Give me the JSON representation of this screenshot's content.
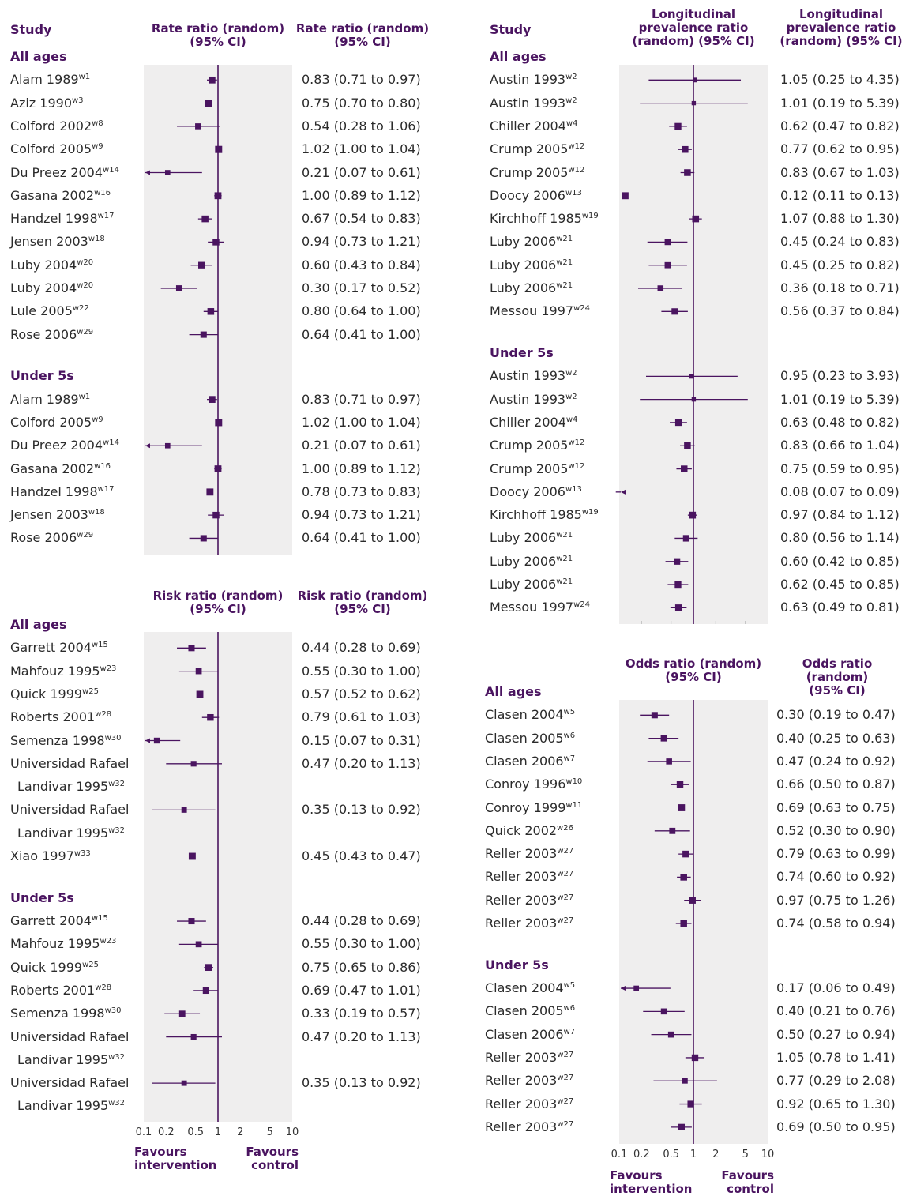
{
  "colors": {
    "accent": "#4a1460",
    "mark": "#4a1460",
    "panel_bg": "#efeeee"
  },
  "chart_data": [
    {
      "type": "forest",
      "id": "p1",
      "study_header": "Study",
      "col_header_plot": "Rate ratio (random)\n(95% CI)",
      "col_header_text": "Rate ratio (random)\n(95% CI)",
      "xscale": "log",
      "xlim": [
        0.1,
        10
      ],
      "xticks": [
        "0.1",
        "0.2",
        "0.5",
        "1",
        "2",
        "5",
        "10"
      ],
      "xlabel_left": "",
      "xlabel_right": "",
      "groups": [
        {
          "label": "All ages",
          "rows": [
            {
              "study": "Alam 1989",
              "ref": "w1",
              "est": 0.83,
              "lo": 0.71,
              "hi": 0.97,
              "text": "0.83 (0.71 to 0.97)"
            },
            {
              "study": "Aziz 1990",
              "ref": "w3",
              "est": 0.75,
              "lo": 0.7,
              "hi": 0.8,
              "text": "0.75 (0.70 to 0.80)"
            },
            {
              "study": "Colford 2002",
              "ref": "w8",
              "est": 0.54,
              "lo": 0.28,
              "hi": 1.06,
              "text": "0.54 (0.28 to 1.06)"
            },
            {
              "study": "Colford 2005",
              "ref": "w9",
              "est": 1.02,
              "lo": 1.0,
              "hi": 1.04,
              "text": "1.02 (1.00 to 1.04)"
            },
            {
              "study": "Du Preez 2004",
              "ref": "w14",
              "est": 0.21,
              "lo": 0.07,
              "hi": 0.61,
              "text": "0.21 (0.07 to 0.61)"
            },
            {
              "study": "Gasana 2002",
              "ref": "w16",
              "est": 1.0,
              "lo": 0.89,
              "hi": 1.12,
              "text": "1.00 (0.89 to 1.12)"
            },
            {
              "study": "Handzel 1998",
              "ref": "w17",
              "est": 0.67,
              "lo": 0.54,
              "hi": 0.83,
              "text": "0.67 (0.54 to 0.83)"
            },
            {
              "study": "Jensen 2003",
              "ref": "w18",
              "est": 0.94,
              "lo": 0.73,
              "hi": 1.21,
              "text": "0.94 (0.73 to 1.21)"
            },
            {
              "study": "Luby 2004",
              "ref": "w20",
              "est": 0.6,
              "lo": 0.43,
              "hi": 0.84,
              "text": "0.60 (0.43 to 0.84)"
            },
            {
              "study": "Luby 2004",
              "ref": "w20",
              "est": 0.3,
              "lo": 0.17,
              "hi": 0.52,
              "text": "0.30 (0.17 to 0.52)"
            },
            {
              "study": "Lule 2005",
              "ref": "w22",
              "est": 0.8,
              "lo": 0.64,
              "hi": 1.0,
              "text": "0.80 (0.64 to 1.00)"
            },
            {
              "study": "Rose 2006",
              "ref": "w29",
              "est": 0.64,
              "lo": 0.41,
              "hi": 1.0,
              "text": "0.64 (0.41 to 1.00)"
            }
          ]
        },
        {
          "label": "Under 5s",
          "rows": [
            {
              "study": "Alam 1989",
              "ref": "w1",
              "est": 0.83,
              "lo": 0.71,
              "hi": 0.97,
              "text": "0.83 (0.71 to 0.97)"
            },
            {
              "study": "Colford 2005",
              "ref": "w9",
              "est": 1.02,
              "lo": 1.0,
              "hi": 1.04,
              "text": "1.02 (1.00 to 1.04)"
            },
            {
              "study": "Du Preez 2004",
              "ref": "w14",
              "est": 0.21,
              "lo": 0.07,
              "hi": 0.61,
              "text": "0.21 (0.07 to 0.61)"
            },
            {
              "study": "Gasana 2002",
              "ref": "w16",
              "est": 1.0,
              "lo": 0.89,
              "hi": 1.12,
              "text": "1.00 (0.89 to 1.12)"
            },
            {
              "study": "Handzel 1998",
              "ref": "w17",
              "est": 0.78,
              "lo": 0.73,
              "hi": 0.83,
              "text": "0.78 (0.73 to 0.83)"
            },
            {
              "study": "Jensen 2003",
              "ref": "w18",
              "est": 0.94,
              "lo": 0.73,
              "hi": 1.21,
              "text": "0.94 (0.73 to 1.21)"
            },
            {
              "study": "Rose 2006",
              "ref": "w29",
              "est": 0.64,
              "lo": 0.41,
              "hi": 1.0,
              "text": "0.64 (0.41 to 1.00)"
            }
          ]
        }
      ]
    },
    {
      "type": "forest",
      "id": "p2",
      "study_header": "",
      "col_header_plot": "Risk ratio (random)\n(95% CI)",
      "col_header_text": "Risk ratio (random)\n(95% CI)",
      "xscale": "log",
      "xlim": [
        0.1,
        10
      ],
      "xticks": [
        "0.1",
        "0.2",
        "0.5",
        "1",
        "2",
        "5",
        "10"
      ],
      "xlabel_left": "Favours\nintervention",
      "xlabel_right": "Favours\ncontrol",
      "groups": [
        {
          "label": "All ages",
          "rows": [
            {
              "study": "Garrett 2004",
              "ref": "w15",
              "est": 0.44,
              "lo": 0.28,
              "hi": 0.69,
              "text": "0.44 (0.28 to 0.69)"
            },
            {
              "study": "Mahfouz 1995",
              "ref": "w23",
              "est": 0.55,
              "lo": 0.3,
              "hi": 1.0,
              "text": "0.55 (0.30 to 1.00)"
            },
            {
              "study": "Quick 1999",
              "ref": "w25",
              "est": 0.57,
              "lo": 0.52,
              "hi": 0.62,
              "text": "0.57 (0.52 to 0.62)"
            },
            {
              "study": "Roberts 2001",
              "ref": "w28",
              "est": 0.79,
              "lo": 0.61,
              "hi": 1.03,
              "text": "0.79 (0.61 to 1.03)"
            },
            {
              "study": "Semenza 1998",
              "ref": "w30",
              "est": 0.15,
              "lo": 0.07,
              "hi": 0.31,
              "text": "0.15 (0.07 to 0.31)"
            },
            {
              "study": "Universidad Rafael",
              "study2": "Landivar 1995",
              "ref": "w32",
              "est": 0.47,
              "lo": 0.2,
              "hi": 1.13,
              "text": "0.47 (0.20 to 1.13)"
            },
            {
              "study": "Universidad Rafael",
              "study2": "Landivar 1995",
              "ref": "w32",
              "est": 0.35,
              "lo": 0.13,
              "hi": 0.92,
              "text": "0.35 (0.13 to 0.92)"
            },
            {
              "study": "Xiao 1997",
              "ref": "w33",
              "est": 0.45,
              "lo": 0.43,
              "hi": 0.47,
              "text": "0.45 (0.43 to 0.47)"
            }
          ]
        },
        {
          "label": "Under 5s",
          "rows": [
            {
              "study": "Garrett 2004",
              "ref": "w15",
              "est": 0.44,
              "lo": 0.28,
              "hi": 0.69,
              "text": "0.44 (0.28 to 0.69)"
            },
            {
              "study": "Mahfouz 1995",
              "ref": "w23",
              "est": 0.55,
              "lo": 0.3,
              "hi": 1.0,
              "text": "0.55 (0.30 to 1.00)"
            },
            {
              "study": "Quick 1999",
              "ref": "w25",
              "est": 0.75,
              "lo": 0.65,
              "hi": 0.86,
              "text": "0.75 (0.65 to 0.86)"
            },
            {
              "study": "Roberts 2001",
              "ref": "w28",
              "est": 0.69,
              "lo": 0.47,
              "hi": 1.01,
              "text": "0.69 (0.47 to 1.01)"
            },
            {
              "study": "Semenza 1998",
              "ref": "w30",
              "est": 0.33,
              "lo": 0.19,
              "hi": 0.57,
              "text": "0.33 (0.19 to 0.57)"
            },
            {
              "study": "Universidad Rafael",
              "study2": "Landivar 1995",
              "ref": "w32",
              "est": 0.47,
              "lo": 0.2,
              "hi": 1.13,
              "text": "0.47 (0.20 to 1.13)"
            },
            {
              "study": "Universidad Rafael",
              "study2": "Landivar 1995",
              "ref": "w32",
              "est": 0.35,
              "lo": 0.13,
              "hi": 0.92,
              "text": "0.35 (0.13 to 0.92)"
            }
          ]
        }
      ]
    },
    {
      "type": "forest",
      "id": "p3",
      "study_header": "Study",
      "col_header_plot": "Longitudinal\nprevalence ratio\n(random) (95% CI)",
      "col_header_text": "Longitudinal\nprevalence ratio\n(random) (95% CI)",
      "xscale": "log",
      "xlim": [
        0.1,
        10
      ],
      "xticks": [],
      "xlabel_left": "",
      "xlabel_right": "",
      "groups": [
        {
          "label": "All ages",
          "rows": [
            {
              "study": "Austin 1993",
              "ref": "w2",
              "est": 1.05,
              "lo": 0.25,
              "hi": 4.35,
              "text": "1.05 (0.25 to 4.35)"
            },
            {
              "study": "Austin 1993",
              "ref": "w2",
              "est": 1.01,
              "lo": 0.19,
              "hi": 5.39,
              "text": "1.01 (0.19 to 5.39)"
            },
            {
              "study": "Chiller 2004",
              "ref": "w4",
              "est": 0.62,
              "lo": 0.47,
              "hi": 0.82,
              "text": "0.62 (0.47 to 0.82)"
            },
            {
              "study": "Crump 2005",
              "ref": "w12",
              "est": 0.77,
              "lo": 0.62,
              "hi": 0.95,
              "text": "0.77 (0.62 to 0.95)"
            },
            {
              "study": "Crump 2005",
              "ref": "w12",
              "est": 0.83,
              "lo": 0.67,
              "hi": 1.03,
              "text": "0.83 (0.67 to 1.03)"
            },
            {
              "study": "Doocy 2006",
              "ref": "w13",
              "est": 0.12,
              "lo": 0.11,
              "hi": 0.13,
              "text": "0.12 (0.11 to 0.13)"
            },
            {
              "study": "Kirchhoff 1985",
              "ref": "w19",
              "est": 1.07,
              "lo": 0.88,
              "hi": 1.3,
              "text": "1.07 (0.88 to 1.30)"
            },
            {
              "study": "Luby 2006",
              "ref": "w21",
              "est": 0.45,
              "lo": 0.24,
              "hi": 0.83,
              "text": "0.45 (0.24 to 0.83)"
            },
            {
              "study": "Luby 2006",
              "ref": "w21",
              "est": 0.45,
              "lo": 0.25,
              "hi": 0.82,
              "text": "0.45 (0.25 to 0.82)"
            },
            {
              "study": "Luby 2006",
              "ref": "w21",
              "est": 0.36,
              "lo": 0.18,
              "hi": 0.71,
              "text": "0.36 (0.18 to 0.71)"
            },
            {
              "study": "Messou 1997",
              "ref": "w24",
              "est": 0.56,
              "lo": 0.37,
              "hi": 0.84,
              "text": "0.56 (0.37 to 0.84)"
            }
          ]
        },
        {
          "label": "Under 5s",
          "rows": [
            {
              "study": "Austin 1993",
              "ref": "w2",
              "est": 0.95,
              "lo": 0.23,
              "hi": 3.93,
              "text": "0.95 (0.23 to 3.93)"
            },
            {
              "study": "Austin 1993",
              "ref": "w2",
              "est": 1.01,
              "lo": 0.19,
              "hi": 5.39,
              "text": "1.01 (0.19 to 5.39)"
            },
            {
              "study": "Chiller 2004",
              "ref": "w4",
              "est": 0.63,
              "lo": 0.48,
              "hi": 0.82,
              "text": "0.63 (0.48 to 0.82)"
            },
            {
              "study": "Crump 2005",
              "ref": "w12",
              "est": 0.83,
              "lo": 0.66,
              "hi": 1.04,
              "text": "0.83 (0.66 to 1.04)"
            },
            {
              "study": "Crump 2005",
              "ref": "w12",
              "est": 0.75,
              "lo": 0.59,
              "hi": 0.95,
              "text": "0.75 (0.59 to 0.95)"
            },
            {
              "study": "Doocy 2006",
              "ref": "w13",
              "est": 0.08,
              "lo": 0.07,
              "hi": 0.09,
              "text": "0.08 (0.07 to 0.09)"
            },
            {
              "study": "Kirchhoff 1985",
              "ref": "w19",
              "est": 0.97,
              "lo": 0.84,
              "hi": 1.12,
              "text": "0.97 (0.84 to 1.12)"
            },
            {
              "study": "Luby 2006",
              "ref": "w21",
              "est": 0.8,
              "lo": 0.56,
              "hi": 1.14,
              "text": "0.80 (0.56 to 1.14)"
            },
            {
              "study": "Luby 2006",
              "ref": "w21",
              "est": 0.6,
              "lo": 0.42,
              "hi": 0.85,
              "text": "0.60 (0.42 to 0.85)"
            },
            {
              "study": "Luby 2006",
              "ref": "w21",
              "est": 0.62,
              "lo": 0.45,
              "hi": 0.85,
              "text": "0.62 (0.45 to 0.85)"
            },
            {
              "study": "Messou 1997",
              "ref": "w24",
              "est": 0.63,
              "lo": 0.49,
              "hi": 0.81,
              "text": "0.63 (0.49 to 0.81)"
            }
          ]
        }
      ]
    },
    {
      "type": "forest",
      "id": "p4",
      "study_header": "",
      "col_header_plot": "Odds ratio (random)\n(95% CI)",
      "col_header_text": "Odds ratio (random)\n(95% CI)",
      "xscale": "log",
      "xlim": [
        0.1,
        10
      ],
      "xticks": [
        "0.1",
        "0.2",
        "0.5",
        "1",
        "2",
        "5",
        "10"
      ],
      "xlabel_left": "Favours\nintervention",
      "xlabel_right": "Favours\ncontrol",
      "groups": [
        {
          "label": "All ages",
          "rows": [
            {
              "study": "Clasen 2004",
              "ref": "w5",
              "est": 0.3,
              "lo": 0.19,
              "hi": 0.47,
              "text": "0.30 (0.19 to 0.47)"
            },
            {
              "study": "Clasen 2005",
              "ref": "w6",
              "est": 0.4,
              "lo": 0.25,
              "hi": 0.63,
              "text": "0.40 (0.25 to 0.63)"
            },
            {
              "study": "Clasen 2006",
              "ref": "w7",
              "est": 0.47,
              "lo": 0.24,
              "hi": 0.92,
              "text": "0.47 (0.24 to 0.92)"
            },
            {
              "study": "Conroy 1996",
              "ref": "w10",
              "est": 0.66,
              "lo": 0.5,
              "hi": 0.87,
              "text": "0.66 (0.50 to 0.87)"
            },
            {
              "study": "Conroy 1999",
              "ref": "w11",
              "est": 0.69,
              "lo": 0.63,
              "hi": 0.75,
              "text": "0.69 (0.63 to 0.75)"
            },
            {
              "study": "Quick 2002",
              "ref": "w26",
              "est": 0.52,
              "lo": 0.3,
              "hi": 0.9,
              "text": "0.52 (0.30 to 0.90)"
            },
            {
              "study": "Reller 2003",
              "ref": "w27",
              "est": 0.79,
              "lo": 0.63,
              "hi": 0.99,
              "text": "0.79 (0.63 to 0.99)"
            },
            {
              "study": "Reller 2003",
              "ref": "w27",
              "est": 0.74,
              "lo": 0.6,
              "hi": 0.92,
              "text": "0.74 (0.60 to 0.92)"
            },
            {
              "study": "Reller 2003",
              "ref": "w27",
              "est": 0.97,
              "lo": 0.75,
              "hi": 1.26,
              "text": "0.97 (0.75 to 1.26)"
            },
            {
              "study": "Reller 2003",
              "ref": "w27",
              "est": 0.74,
              "lo": 0.58,
              "hi": 0.94,
              "text": "0.74 (0.58 to 0.94)"
            }
          ]
        },
        {
          "label": "Under 5s",
          "rows": [
            {
              "study": "Clasen 2004",
              "ref": "w5",
              "est": 0.17,
              "lo": 0.06,
              "hi": 0.49,
              "text": "0.17 (0.06 to 0.49)"
            },
            {
              "study": "Clasen 2005",
              "ref": "w6",
              "est": 0.4,
              "lo": 0.21,
              "hi": 0.76,
              "text": "0.40 (0.21 to 0.76)"
            },
            {
              "study": "Clasen 2006",
              "ref": "w7",
              "est": 0.5,
              "lo": 0.27,
              "hi": 0.94,
              "text": "0.50 (0.27 to 0.94)"
            },
            {
              "study": "Reller 2003",
              "ref": "w27",
              "est": 1.05,
              "lo": 0.78,
              "hi": 1.41,
              "text": "1.05 (0.78 to 1.41)"
            },
            {
              "study": "Reller 2003",
              "ref": "w27",
              "est": 0.77,
              "lo": 0.29,
              "hi": 2.08,
              "text": "0.77 (0.29 to 2.08)"
            },
            {
              "study": "Reller 2003",
              "ref": "w27",
              "est": 0.92,
              "lo": 0.65,
              "hi": 1.3,
              "text": "0.92 (0.65 to 1.30)"
            },
            {
              "study": "Reller 2003",
              "ref": "w27",
              "est": 0.69,
              "lo": 0.5,
              "hi": 0.95,
              "text": "0.69 (0.50 to 0.95)"
            }
          ]
        }
      ]
    }
  ]
}
